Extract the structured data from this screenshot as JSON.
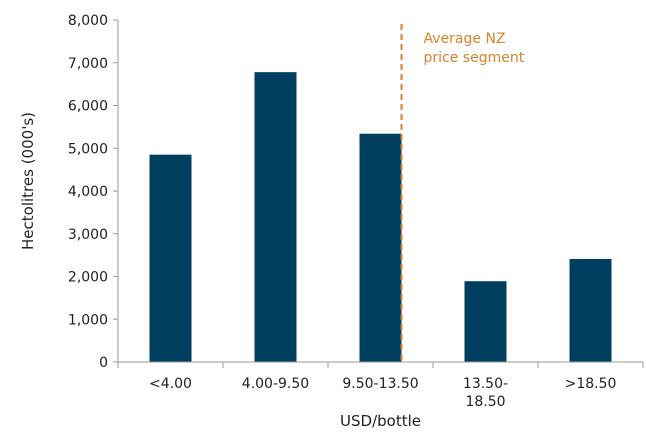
{
  "chart_data": {
    "type": "bar",
    "categories": [
      [
        "<4.00"
      ],
      [
        "4.00-9.50"
      ],
      [
        "9.50-13.50"
      ],
      [
        "13.50-",
        "18.50"
      ],
      [
        ">18.50"
      ]
    ],
    "values": [
      4850,
      6780,
      5340,
      1890,
      2410
    ],
    "xlabel": "USD/bottle",
    "ylabel": "Hectolitres (000's)",
    "ylim": [
      0,
      8000
    ],
    "yticks": [
      0,
      1000,
      2000,
      3000,
      4000,
      5000,
      6000,
      7000,
      8000
    ],
    "ytick_labels": [
      "0",
      "1,000",
      "2,000",
      "3,000",
      "4,000",
      "5,000",
      "6,000",
      "7,000",
      "8,000"
    ],
    "grid": false,
    "bar_color": "#003f5f",
    "reference_line": {
      "category_index": 2,
      "offset_within_category": 0.2,
      "color": "#d9822b",
      "style": "dashed",
      "label": [
        "Average NZ",
        "price segment"
      ]
    }
  }
}
